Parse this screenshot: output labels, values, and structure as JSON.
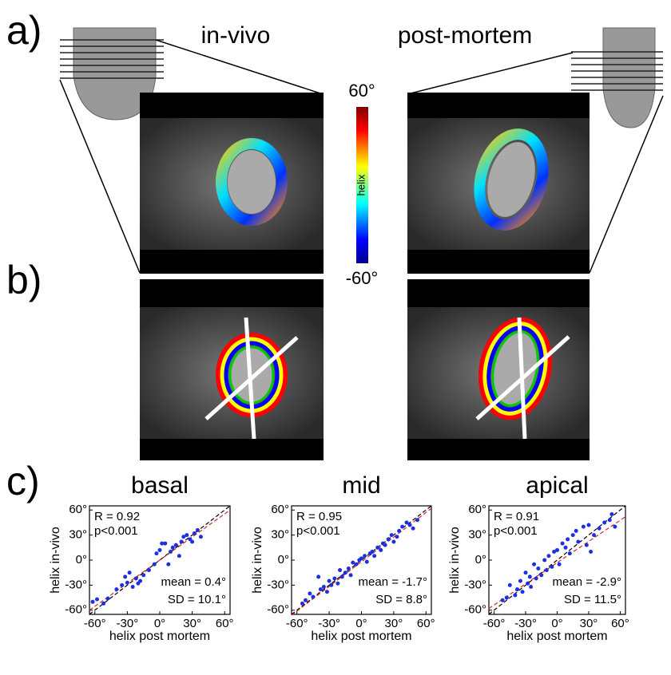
{
  "figure": {
    "panel_labels": [
      "a)",
      "b)",
      "c)"
    ],
    "column_titles": [
      "in-vivo",
      "post-mortem"
    ],
    "colorbar": {
      "max_label": "60°",
      "name": "helix",
      "min_label": "-60°"
    }
  },
  "chart_data": [
    {
      "type": "scatter",
      "title": "basal",
      "xlabel": "helix post mortem",
      "ylabel": "helix in-vivo",
      "annotations": [
        "R = 0.92",
        "p<0.001",
        "mean = 0.4°",
        "SD = 10.1°"
      ],
      "color": "#1f2fe0",
      "fit_color": "#d62728",
      "x": [
        -62,
        -58,
        -52,
        -48,
        -40,
        -35,
        -32,
        -30,
        -28,
        -25,
        -22,
        -20,
        -18,
        -15,
        -10,
        -5,
        -3,
        0,
        2,
        5,
        8,
        10,
        12,
        15,
        18,
        20,
        22,
        25,
        28,
        30,
        32,
        35,
        38
      ],
      "y": [
        -50,
        -47,
        -52,
        -46,
        -35,
        -30,
        -20,
        -27,
        -15,
        -32,
        -22,
        -28,
        -25,
        -18,
        -12,
        -5,
        8,
        12,
        20,
        20,
        -5,
        10,
        15,
        18,
        5,
        22,
        28,
        30,
        25,
        22,
        32,
        36,
        28
      ],
      "fit": {
        "x": [
          -65,
          65
        ],
        "y": [
          -60,
          60
        ]
      },
      "xlim": [
        -65,
        65
      ],
      "ylim": [
        -65,
        65
      ],
      "xticks": [
        {
          "value": -60,
          "label": "-60°"
        },
        {
          "value": -30,
          "label": "-30°"
        },
        {
          "value": 0,
          "label": "0°"
        },
        {
          "value": 30,
          "label": "30°"
        },
        {
          "value": 60,
          "label": "60°"
        }
      ],
      "yticks": [
        {
          "value": -60,
          "label": "-60°"
        },
        {
          "value": -30,
          "label": "-30°"
        },
        {
          "value": 0,
          "label": "0°"
        },
        {
          "value": 30,
          "label": "30°"
        },
        {
          "value": 60,
          "label": "60°"
        }
      ]
    },
    {
      "type": "scatter",
      "title": "mid",
      "xlabel": "helix post mortem",
      "ylabel": "helix in-vivo",
      "annotations": [
        "R = 0.95",
        "p<0.001",
        "mean = -1.7°",
        "SD = 8.8°"
      ],
      "color": "#1f2fe0",
      "fit_color": "#d62728",
      "x": [
        -55,
        -52,
        -48,
        -45,
        -40,
        -38,
        -35,
        -32,
        -30,
        -28,
        -25,
        -22,
        -20,
        -18,
        -15,
        -12,
        -10,
        -8,
        -5,
        -2,
        0,
        3,
        5,
        8,
        10,
        12,
        15,
        18,
        20,
        22,
        25,
        28,
        30,
        33,
        35,
        38,
        42,
        45,
        48,
        52
      ],
      "y": [
        -52,
        -48,
        -40,
        -44,
        -20,
        -35,
        -32,
        -38,
        -25,
        -30,
        -22,
        -28,
        -12,
        -20,
        -15,
        -10,
        -18,
        -3,
        -5,
        0,
        2,
        5,
        -2,
        8,
        10,
        5,
        15,
        12,
        20,
        18,
        25,
        30,
        22,
        28,
        35,
        40,
        45,
        42,
        38,
        48
      ],
      "fit": {
        "x": [
          -65,
          65
        ],
        "y": [
          -66,
          62
        ]
      },
      "xlim": [
        -65,
        65
      ],
      "ylim": [
        -65,
        65
      ],
      "xticks": [
        {
          "value": -60,
          "label": "-60°"
        },
        {
          "value": -30,
          "label": "-30°"
        },
        {
          "value": 0,
          "label": "0°"
        },
        {
          "value": 30,
          "label": "30°"
        },
        {
          "value": 60,
          "label": "60°"
        }
      ],
      "yticks": [
        {
          "value": -60,
          "label": "-60°"
        },
        {
          "value": -30,
          "label": "-30°"
        },
        {
          "value": 0,
          "label": "0°"
        },
        {
          "value": 30,
          "label": "30°"
        },
        {
          "value": 60,
          "label": "60°"
        }
      ]
    },
    {
      "type": "scatter",
      "title": "apical",
      "xlabel": "helix post mortem",
      "ylabel": "helix in-vivo",
      "annotations": [
        "R = 0.91",
        "p<0.001",
        "mean = -2.9°",
        "SD = 11.5°"
      ],
      "color": "#1f2fe0",
      "fit_color": "#d62728",
      "x": [
        -52,
        -48,
        -45,
        -40,
        -38,
        -35,
        -33,
        -30,
        -28,
        -26,
        -25,
        -22,
        -20,
        -18,
        -15,
        -12,
        -10,
        -8,
        -5,
        -3,
        0,
        2,
        5,
        8,
        10,
        12,
        15,
        18,
        20,
        25,
        28,
        30,
        32,
        35,
        40,
        45,
        50,
        52,
        55
      ],
      "y": [
        -48,
        -45,
        -30,
        -42,
        -35,
        -25,
        -38,
        -15,
        -28,
        -20,
        -32,
        -5,
        -22,
        -10,
        -18,
        0,
        -12,
        5,
        -8,
        10,
        12,
        -5,
        20,
        15,
        25,
        8,
        30,
        35,
        22,
        40,
        18,
        42,
        10,
        30,
        38,
        45,
        48,
        55,
        40
      ],
      "fit": {
        "x": [
          -65,
          65
        ],
        "y": [
          -58,
          52
        ]
      },
      "xlim": [
        -65,
        65
      ],
      "ylim": [
        -65,
        65
      ],
      "xticks": [
        {
          "value": -60,
          "label": "-60°"
        },
        {
          "value": -30,
          "label": "-30°"
        },
        {
          "value": 0,
          "label": "0°"
        },
        {
          "value": 30,
          "label": "30°"
        },
        {
          "value": 60,
          "label": "60°"
        }
      ],
      "yticks": [
        {
          "value": -60,
          "label": "-60°"
        },
        {
          "value": -30,
          "label": "-30°"
        },
        {
          "value": 0,
          "label": "0°"
        },
        {
          "value": 30,
          "label": "30°"
        },
        {
          "value": 60,
          "label": "60°"
        }
      ]
    }
  ]
}
